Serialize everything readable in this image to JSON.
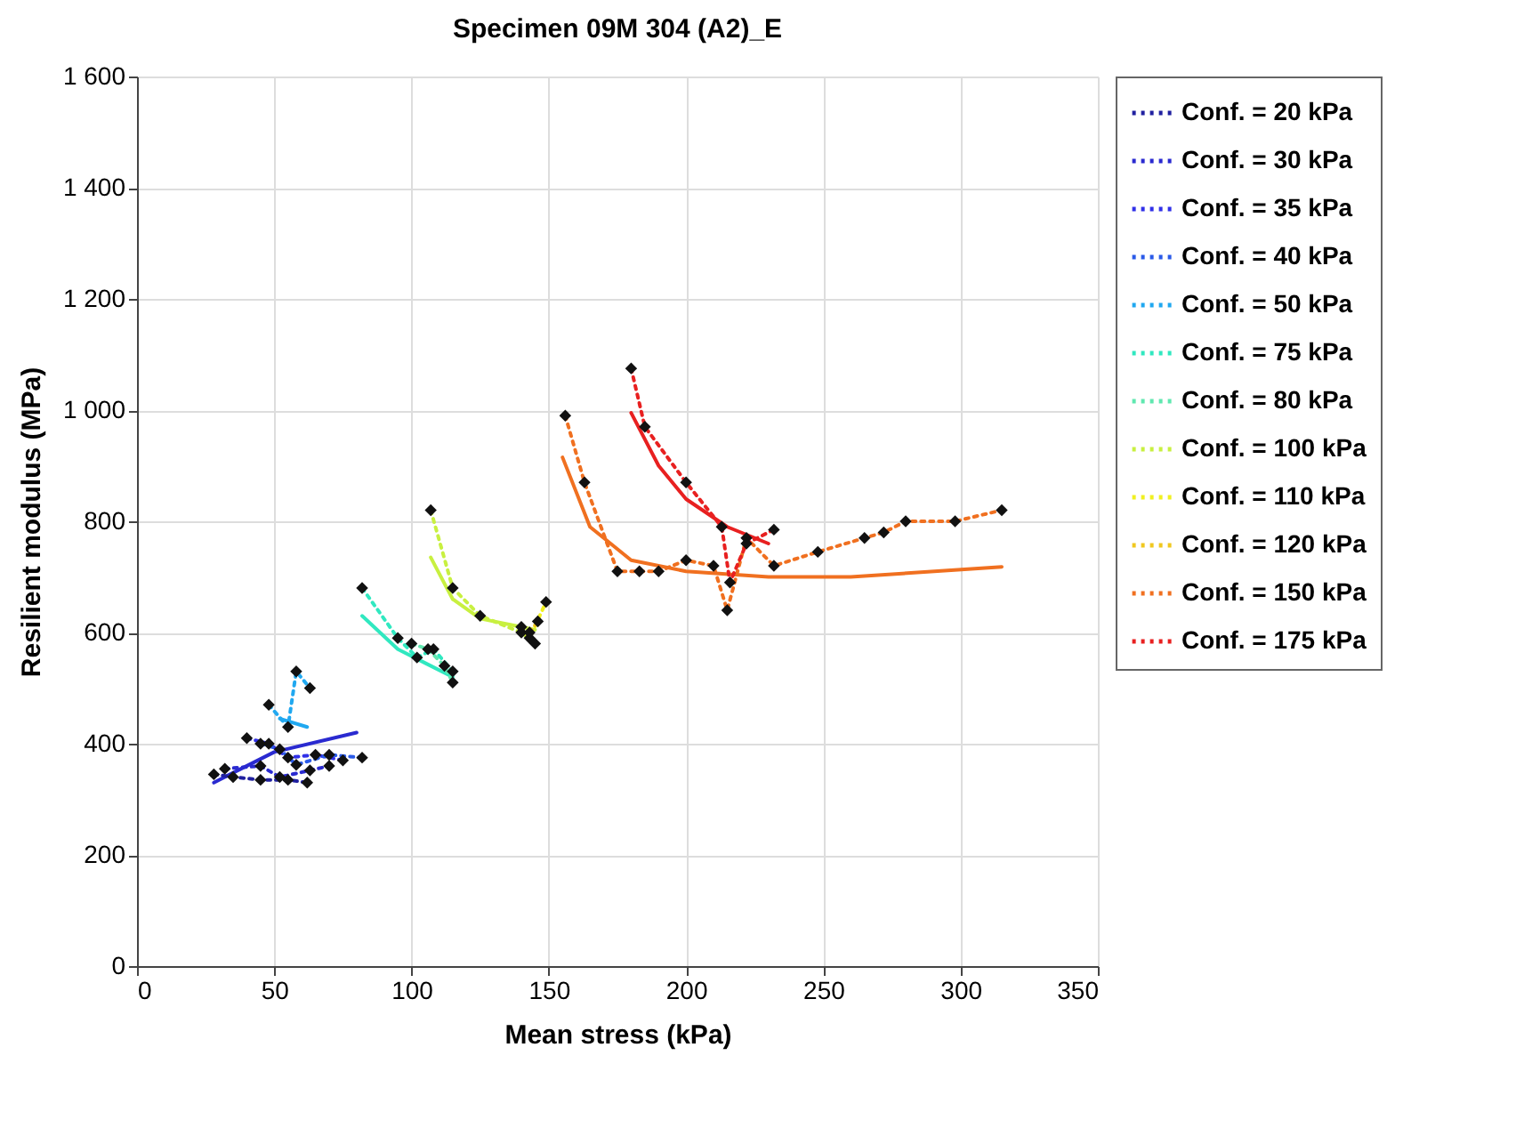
{
  "chart_data": {
    "type": "line",
    "title": "Specimen  09M 304 (A2)_E",
    "xlabel": "Mean stress (kPa)",
    "ylabel": "Resilient modulus (MPa)",
    "xlim": [
      0,
      350
    ],
    "xticks": [
      0,
      50,
      100,
      150,
      200,
      250,
      300,
      350
    ],
    "ylim": [
      0,
      1600
    ],
    "yticks": [
      0,
      200,
      400,
      600,
      800,
      {
        "value": 1000,
        "label": "1 000"
      },
      {
        "value": 1200,
        "label": "1 200"
      },
      {
        "value": 1400,
        "label": "1 400"
      },
      {
        "value": 1600,
        "label": "1 600"
      }
    ],
    "grid": true,
    "legend": "right",
    "marker": "diamond",
    "line_style": "dotted",
    "series": [
      {
        "name": "Conf. = 20 kPa",
        "color": "#2020a0",
        "x": [
          28,
          35,
          45,
          55,
          62
        ],
        "values": [
          345,
          340,
          335,
          335,
          330
        ]
      },
      {
        "name": "Conf. = 30 kPa",
        "color": "#2a2ad0",
        "x": [
          32,
          45,
          52,
          63,
          70
        ],
        "values": [
          355,
          360,
          340,
          352,
          360
        ]
      },
      {
        "name": "Conf. = 35 kPa",
        "color": "#3030e8",
        "x": [
          40,
          48,
          55,
          65,
          75
        ],
        "values": [
          410,
          400,
          375,
          380,
          370
        ]
      },
      {
        "name": "Conf. = 40 kPa",
        "color": "#2a5ae8",
        "x": [
          45,
          52,
          58,
          70,
          82
        ],
        "values": [
          400,
          390,
          362,
          380,
          375
        ]
      },
      {
        "name": "Conf. = 50 kPa",
        "color": "#20a8f0",
        "x": [
          48,
          55,
          58,
          63
        ],
        "values": [
          470,
          430,
          530,
          500
        ]
      },
      {
        "name": "Conf. = 75 kPa",
        "color": "#30e8c0",
        "x": [
          82,
          95,
          102,
          108,
          115
        ],
        "values": [
          680,
          590,
          555,
          570,
          530
        ]
      },
      {
        "name": "Conf. = 80 kPa",
        "color": "#60e8b0",
        "x": [
          100,
          106,
          112,
          115
        ],
        "values": [
          580,
          570,
          540,
          510
        ]
      },
      {
        "name": "Conf. = 100 kPa",
        "color": "#c8f040",
        "x": [
          107,
          115,
          125,
          140,
          145
        ],
        "values": [
          820,
          680,
          630,
          600,
          580
        ]
      },
      {
        "name": "Conf. = 110 kPa",
        "color": "#f0f020",
        "x": [
          140,
          143,
          149
        ],
        "values": [
          610,
          590,
          655
        ]
      },
      {
        "name": "Conf. = 120 kPa",
        "color": "#f0c820",
        "x": [
          143,
          146
        ],
        "values": [
          600,
          620
        ]
      },
      {
        "name": "Conf. = 150 kPa",
        "color": "#f07020",
        "x": [
          156,
          163,
          175,
          183,
          190,
          200,
          210,
          215,
          222,
          232,
          248,
          265,
          272,
          280,
          298,
          315
        ],
        "values": [
          990,
          870,
          710,
          710,
          710,
          730,
          720,
          640,
          770,
          720,
          745,
          770,
          780,
          800,
          800,
          820
        ]
      },
      {
        "name": "Conf. = 175 kPa",
        "color": "#e82020",
        "x": [
          180,
          185,
          200,
          213,
          216,
          222,
          232
        ],
        "values": [
          1075,
          970,
          870,
          790,
          690,
          760,
          785
        ]
      },
      {
        "color": "#2a2ad0",
        "line_style": "solid",
        "marker": "none",
        "x": [
          28,
          50,
          80
        ],
        "values": [
          330,
          385,
          420
        ]
      },
      {
        "color": "#20a8f0",
        "line_style": "solid",
        "marker": "none",
        "x": [
          52,
          62
        ],
        "values": [
          445,
          430
        ]
      },
      {
        "color": "#30e8c0",
        "line_style": "solid",
        "marker": "none",
        "x": [
          82,
          95,
          105,
          115
        ],
        "values": [
          630,
          570,
          545,
          520
        ]
      },
      {
        "color": "#c8f040",
        "line_style": "solid",
        "marker": "none",
        "x": [
          107,
          115,
          125,
          140,
          145
        ],
        "values": [
          735,
          660,
          625,
          610,
          605
        ]
      },
      {
        "color": "#f07020",
        "line_style": "solid",
        "marker": "none",
        "x": [
          155,
          165,
          180,
          200,
          230,
          260,
          315
        ],
        "values": [
          915,
          790,
          730,
          710,
          700,
          700,
          718
        ]
      },
      {
        "color": "#e82020",
        "line_style": "solid",
        "marker": "none",
        "x": [
          180,
          190,
          200,
          215,
          230
        ],
        "values": [
          995,
          900,
          840,
          790,
          760
        ]
      }
    ]
  }
}
